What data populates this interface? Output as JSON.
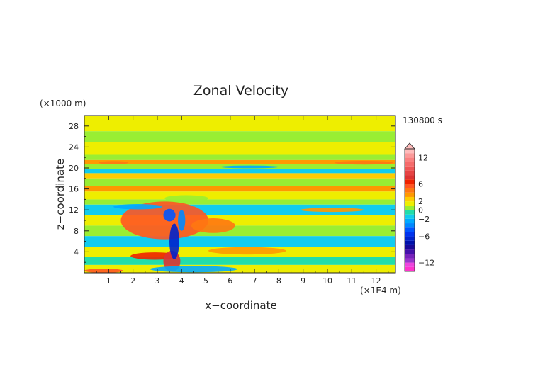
{
  "chart_data": {
    "type": "heatmap",
    "title": "Zonal Velocity",
    "xlabel": "x−coordinate",
    "ylabel": "z−coordinate",
    "x_unit": "(×1E4 m)",
    "y_unit": "(×1000 m)",
    "time_label": "130800 s",
    "xlim": [
      0,
      12.8
    ],
    "ylim": [
      0,
      30
    ],
    "x_ticks": [
      "1",
      "2",
      "3",
      "4",
      "5",
      "6",
      "7",
      "8",
      "9",
      "10",
      "11",
      "12"
    ],
    "y_ticks": [
      "4",
      "8",
      "12",
      "16",
      "20",
      "24",
      "28"
    ],
    "colorbar": {
      "range": [
        -14,
        14
      ],
      "tick_labels": [
        "12",
        "6",
        "2",
        "0",
        "−2",
        "−6",
        "−12"
      ],
      "tick_values": [
        12,
        6,
        2,
        0,
        -2,
        -6,
        -12
      ],
      "levels": [
        {
          "min": -14,
          "max": -13,
          "color": "#ff33cc"
        },
        {
          "min": -13,
          "max": -12,
          "color": "#ee44dd"
        },
        {
          "min": -12,
          "max": -11,
          "color": "#9933cc"
        },
        {
          "min": -11,
          "max": -10,
          "color": "#7722bb"
        },
        {
          "min": -10,
          "max": -9,
          "color": "#4411aa"
        },
        {
          "min": -9,
          "max": -8,
          "color": "#1a0a99"
        },
        {
          "min": -8,
          "max": -7,
          "color": "#0011aa"
        },
        {
          "min": -7,
          "max": -6,
          "color": "#0022cc"
        },
        {
          "min": -6,
          "max": -5,
          "color": "#0033ee"
        },
        {
          "min": -5,
          "max": -4,
          "color": "#0055ff"
        },
        {
          "min": -4,
          "max": -3,
          "color": "#0088ff"
        },
        {
          "min": -3,
          "max": -2,
          "color": "#00aaff"
        },
        {
          "min": -2,
          "max": -1,
          "color": "#11ccee"
        },
        {
          "min": -1,
          "max": 0,
          "color": "#22ddaa"
        },
        {
          "min": 0,
          "max": 1,
          "color": "#99ee33"
        },
        {
          "min": 1,
          "max": 2,
          "color": "#eeee00"
        },
        {
          "min": 2,
          "max": 3,
          "color": "#ffcc00"
        },
        {
          "min": 3,
          "max": 4,
          "color": "#ff9900"
        },
        {
          "min": 4,
          "max": 5,
          "color": "#ff7711"
        },
        {
          "min": 5,
          "max": 6,
          "color": "#ff5522"
        },
        {
          "min": 6,
          "max": 7,
          "color": "#ee2200"
        },
        {
          "min": 7,
          "max": 8,
          "color": "#dd3333"
        },
        {
          "min": 8,
          "max": 9,
          "color": "#e64444"
        },
        {
          "min": 9,
          "max": 10,
          "color": "#ee5555"
        },
        {
          "min": 10,
          "max": 11,
          "color": "#f56b6b"
        },
        {
          "min": 11,
          "max": 12,
          "color": "#fa8080"
        },
        {
          "min": 12,
          "max": 13,
          "color": "#fc9999"
        },
        {
          "min": 13,
          "max": 14,
          "color": "#ffbbbb"
        }
      ]
    },
    "approx_field_bands": [
      {
        "z": [
          27.0,
          30.0
        ],
        "x": [
          0,
          12.8
        ],
        "value": 1.5
      },
      {
        "z": [
          25.0,
          27.0
        ],
        "x": [
          0,
          12.8
        ],
        "value": 0.5
      },
      {
        "z": [
          22.5,
          25.0
        ],
        "x": [
          0,
          12.8
        ],
        "value": 1.5
      },
      {
        "z": [
          21.5,
          22.5
        ],
        "x": [
          0,
          12.8
        ],
        "value": 0.5
      },
      {
        "z": [
          20.8,
          21.5
        ],
        "x": [
          0,
          12.8
        ],
        "value": 3.5
      },
      {
        "z": [
          19.8,
          20.8
        ],
        "x": [
          0,
          12.8
        ],
        "value": 0.5
      },
      {
        "z": [
          19.0,
          19.8
        ],
        "x": [
          0,
          12.8
        ],
        "value": -1.5
      },
      {
        "z": [
          18.0,
          19.0
        ],
        "x": [
          0,
          12.8
        ],
        "value": 2.5
      },
      {
        "z": [
          16.5,
          18.0
        ],
        "x": [
          0,
          12.8
        ],
        "value": 0.5
      },
      {
        "z": [
          15.5,
          16.5
        ],
        "x": [
          0,
          12.8
        ],
        "value": 3.5
      },
      {
        "z": [
          14.0,
          15.5
        ],
        "x": [
          0,
          12.8
        ],
        "value": 1.5
      },
      {
        "z": [
          13.0,
          14.0
        ],
        "x": [
          0,
          12.8
        ],
        "value": 0.5
      },
      {
        "z": [
          11.0,
          13.0
        ],
        "x": [
          0,
          12.8
        ],
        "value": -1.5
      },
      {
        "z": [
          9.0,
          11.0
        ],
        "x": [
          0,
          12.8
        ],
        "value": 1.5
      },
      {
        "z": [
          7.0,
          9.0
        ],
        "x": [
          0,
          12.8
        ],
        "value": 0.5
      },
      {
        "z": [
          5.0,
          7.0
        ],
        "x": [
          0,
          12.8
        ],
        "value": -1.5
      },
      {
        "z": [
          3.0,
          5.0
        ],
        "x": [
          0,
          12.8
        ],
        "value": 1.5
      },
      {
        "z": [
          1.5,
          3.0
        ],
        "x": [
          0,
          12.8
        ],
        "value": -0.5
      },
      {
        "z": [
          0.0,
          1.5
        ],
        "x": [
          0,
          12.8
        ],
        "value": 1.5
      }
    ]
  }
}
